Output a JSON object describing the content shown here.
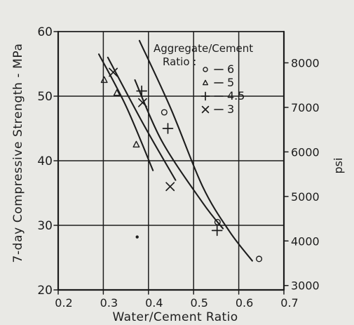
{
  "chart_data": {
    "type": "line",
    "xlabel": "Water/Cement Ratio",
    "ylabel": "7-day Compressive Strength - MPa",
    "y2label": "psi",
    "xlim": [
      0.2,
      0.7
    ],
    "ylim": [
      20,
      60
    ],
    "x_ticks": [
      0.2,
      0.3,
      0.4,
      0.5,
      0.6,
      0.7
    ],
    "x_tick_labels": [
      "0.2",
      "0.3",
      "0.4",
      "0.5",
      "0.6",
      "0.7"
    ],
    "y_ticks": [
      20,
      30,
      40,
      50,
      60
    ],
    "y_tick_labels": [
      "20",
      "30",
      "40",
      "50",
      "60"
    ],
    "y2_ticks": [
      3000,
      4000,
      5000,
      6000,
      7000,
      8000
    ],
    "y2_tick_labels": [
      "3000",
      "4000",
      "5000",
      "6000",
      "7000",
      "8000"
    ],
    "grid": true,
    "legend_title": "Aggregate/Cement Ratio :",
    "legend_position": "top-right",
    "series": [
      {
        "name": "6",
        "marker": "circle",
        "curve": [
          [
            0.38,
            58.6
          ],
          [
            0.45,
            48.0
          ],
          [
            0.52,
            36.0
          ],
          [
            0.58,
            29.0
          ],
          [
            0.63,
            24.5
          ]
        ],
        "points": [
          [
            0.435,
            47.5
          ],
          [
            0.553,
            30.5
          ],
          [
            0.645,
            24.8
          ]
        ]
      },
      {
        "name": "5",
        "marker": "triangle",
        "curve": [
          [
            0.29,
            56.5
          ],
          [
            0.35,
            48.5
          ],
          [
            0.41,
            38.5
          ]
        ],
        "points": [
          [
            0.302,
            52.5
          ],
          [
            0.33,
            50.5
          ],
          [
            0.373,
            42.5
          ]
        ]
      },
      {
        "name": "4.5",
        "marker": "plus",
        "curve": [
          [
            0.37,
            52.5
          ],
          [
            0.43,
            43.0
          ],
          [
            0.52,
            33.5
          ],
          [
            0.565,
            29.5
          ]
        ],
        "points": [
          [
            0.385,
            50.8
          ],
          [
            0.443,
            45.0
          ],
          [
            0.552,
            29.2
          ]
        ]
      },
      {
        "name": "3",
        "marker": "cross",
        "curve": [
          [
            0.31,
            56.0
          ],
          [
            0.39,
            45.5
          ],
          [
            0.46,
            37.0
          ]
        ],
        "points": [
          [
            0.322,
            53.7
          ],
          [
            0.387,
            49.0
          ],
          [
            0.448,
            36.0
          ]
        ]
      }
    ],
    "isolated_points": [
      [
        0.375,
        28.2
      ]
    ]
  }
}
